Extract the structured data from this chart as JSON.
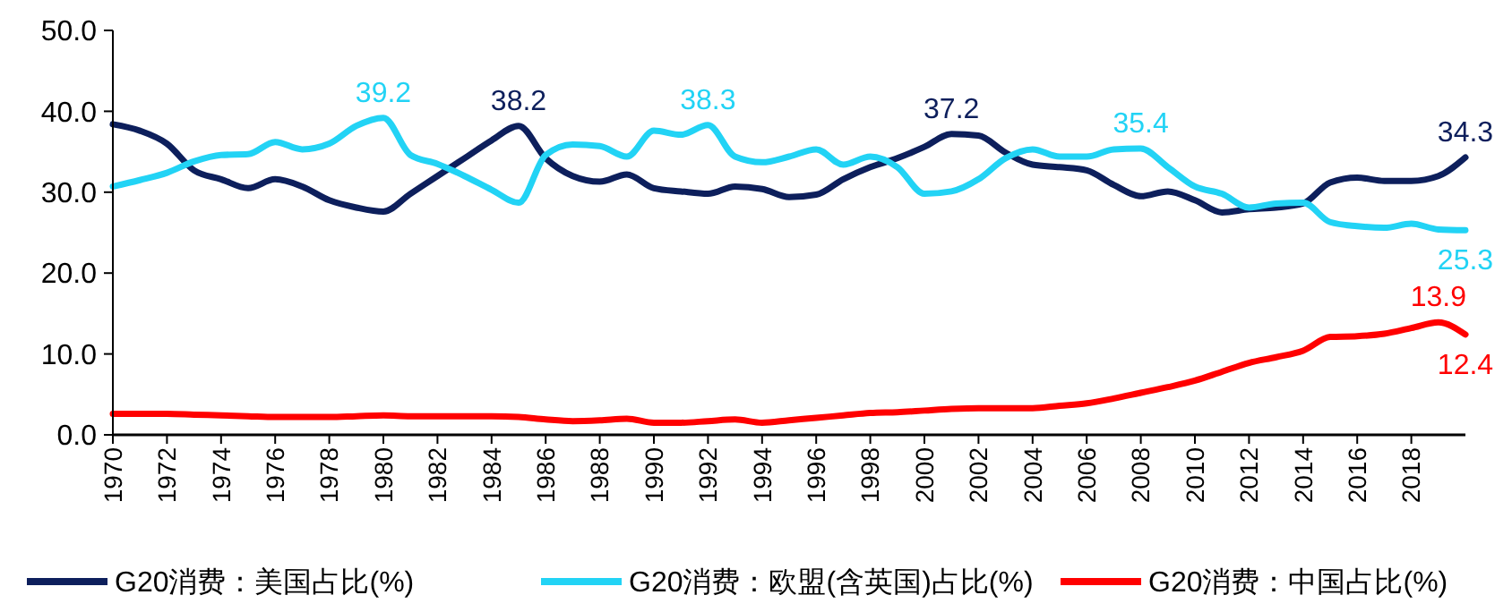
{
  "chart_data": {
    "type": "line",
    "x": [
      1970,
      1971,
      1972,
      1973,
      1974,
      1975,
      1976,
      1977,
      1978,
      1979,
      1980,
      1981,
      1982,
      1983,
      1984,
      1985,
      1986,
      1987,
      1988,
      1989,
      1990,
      1991,
      1992,
      1993,
      1994,
      1995,
      1996,
      1997,
      1998,
      1999,
      2000,
      2001,
      2002,
      2003,
      2004,
      2005,
      2006,
      2007,
      2008,
      2009,
      2010,
      2011,
      2012,
      2013,
      2014,
      2015,
      2016,
      2017,
      2018,
      2019,
      2020
    ],
    "series": [
      {
        "name": "G20消费：美国占比(%)",
        "color": "#0d1f5c",
        "values": [
          38.4,
          37.6,
          36.0,
          32.7,
          31.6,
          30.5,
          31.6,
          30.7,
          29.0,
          28.1,
          27.6,
          29.8,
          32.0,
          34.2,
          36.4,
          38.2,
          34.2,
          32.0,
          31.3,
          32.2,
          30.5,
          30.1,
          29.8,
          30.7,
          30.4,
          29.4,
          29.7,
          31.6,
          33.1,
          34.2,
          35.6,
          37.2,
          37.0,
          34.9,
          33.4,
          33.1,
          32.7,
          30.9,
          29.5,
          30.1,
          29.0,
          27.5,
          27.9,
          28.1,
          28.6,
          31.2,
          31.8,
          31.4,
          31.4,
          32.0,
          34.3
        ]
      },
      {
        "name": "G20消费：欧盟(含英国)占比(%)",
        "color": "#22d3f5",
        "values": [
          30.7,
          31.5,
          32.4,
          33.8,
          34.6,
          34.7,
          36.2,
          35.3,
          36.0,
          38.2,
          39.2,
          34.6,
          33.5,
          32.0,
          30.3,
          28.7,
          34.6,
          35.9,
          35.7,
          34.4,
          37.6,
          37.1,
          38.3,
          34.4,
          33.7,
          34.4,
          35.3,
          33.4,
          34.4,
          33.1,
          29.8,
          30.1,
          31.6,
          34.2,
          35.3,
          34.4,
          34.4,
          35.3,
          35.4,
          33.1,
          30.7,
          29.8,
          28.1,
          28.6,
          28.7,
          26.3,
          25.8,
          25.6,
          26.1,
          25.4,
          25.3
        ]
      },
      {
        "name": "G20消费：中国占比(%)",
        "color": "#ff0000",
        "values": [
          2.6,
          2.6,
          2.6,
          2.5,
          2.4,
          2.3,
          2.2,
          2.2,
          2.2,
          2.3,
          2.4,
          2.3,
          2.3,
          2.3,
          2.3,
          2.2,
          1.9,
          1.7,
          1.8,
          2.0,
          1.5,
          1.5,
          1.7,
          1.9,
          1.5,
          1.8,
          2.1,
          2.4,
          2.7,
          2.8,
          3.0,
          3.2,
          3.3,
          3.3,
          3.3,
          3.6,
          3.9,
          4.5,
          5.2,
          5.9,
          6.7,
          7.8,
          8.9,
          9.6,
          10.4,
          12.1,
          12.2,
          12.5,
          13.2,
          13.9,
          12.4
        ]
      }
    ],
    "xlim": [
      1970,
      2020
    ],
    "xticks": [
      1970,
      1972,
      1974,
      1976,
      1978,
      1980,
      1982,
      1984,
      1986,
      1988,
      1990,
      1992,
      1994,
      1996,
      1998,
      2000,
      2002,
      2004,
      2006,
      2008,
      2010,
      2012,
      2014,
      2016,
      2018
    ],
    "ylim": [
      0,
      50
    ],
    "yticks": [
      {
        "value": 0,
        "label": "0.0"
      },
      {
        "value": 10,
        "label": "10.0"
      },
      {
        "value": 20,
        "label": "20.0"
      },
      {
        "value": 30,
        "label": "30.0"
      },
      {
        "value": 40,
        "label": "40.0"
      },
      {
        "value": 50,
        "label": "50.0"
      }
    ],
    "grid": false,
    "legend": "bottom",
    "marker": "none",
    "line_style": "solid",
    "annotations": [
      {
        "text": "39.2",
        "x": 1980,
        "y": 39.2
      },
      {
        "text": "38.2",
        "x": 1985,
        "y": 38.2
      },
      {
        "text": "38.3",
        "x": 1992,
        "y": 38.3
      },
      {
        "text": "37.2",
        "x": 2001,
        "y": 37.2
      },
      {
        "text": "35.4",
        "x": 2008,
        "y": 35.4
      },
      {
        "text": "34.3",
        "x": 2020,
        "y": 34.3
      },
      {
        "text": "25.3",
        "x": 2020,
        "y": 25.3
      },
      {
        "text": "13.9",
        "x": 2019,
        "y": 13.9
      },
      {
        "text": "12.4",
        "x": 2020,
        "y": 12.4
      }
    ]
  }
}
